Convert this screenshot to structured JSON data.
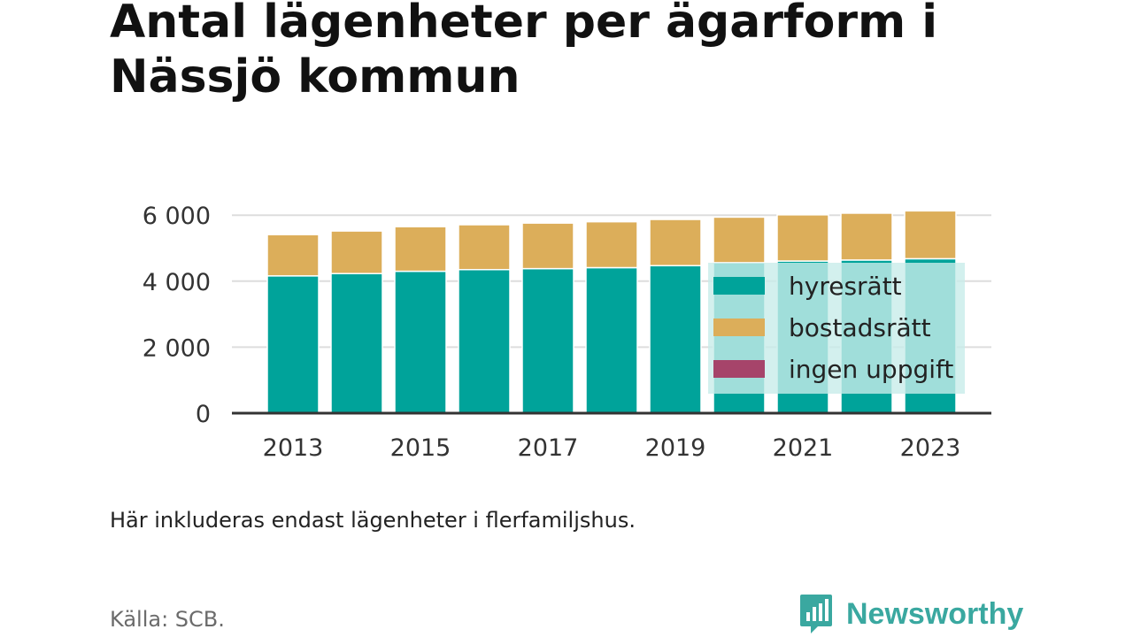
{
  "title": "Antal lägenheter per ägarform i Nässjö kommun",
  "note": "Här inkluderas endast lägenheter i flerfamiljshus.",
  "source": "Källa: SCB.",
  "brand": {
    "name": "Newsworthy",
    "icon": "newsworthy-logo-icon",
    "color": "#3aa8a0"
  },
  "chart_data": {
    "type": "bar",
    "stacked": true,
    "categories": [
      "2013",
      "2014",
      "2015",
      "2016",
      "2017",
      "2018",
      "2019",
      "2020",
      "2021",
      "2022",
      "2023"
    ],
    "x_tick_labels": [
      "2013",
      "2015",
      "2017",
      "2019",
      "2021",
      "2023"
    ],
    "y_ticks": [
      0,
      2000,
      4000,
      6000
    ],
    "y_tick_labels": [
      "0",
      "2 000",
      "4 000",
      "6 000"
    ],
    "ylim": [
      0,
      6300
    ],
    "grid": true,
    "series": [
      {
        "name": "hyresrätt",
        "color": "#00a39a",
        "values": [
          4160,
          4230,
          4300,
          4350,
          4380,
          4410,
          4470,
          4560,
          4610,
          4640,
          4680
        ]
      },
      {
        "name": "bostadsrätt",
        "color": "#dcae5a",
        "values": [
          1250,
          1290,
          1350,
          1360,
          1380,
          1390,
          1400,
          1380,
          1400,
          1420,
          1450
        ]
      },
      {
        "name": "ingen uppgift",
        "color": "#a6446a",
        "values": [
          0,
          0,
          0,
          0,
          0,
          0,
          0,
          0,
          0,
          0,
          0
        ]
      }
    ],
    "legend_position": "inside-right",
    "legend_background": "#c8ecea"
  }
}
